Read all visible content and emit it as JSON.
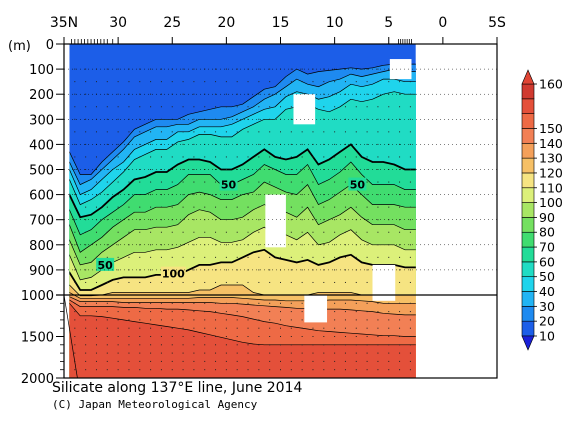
{
  "chart_data": {
    "type": "heatmap",
    "title": "Silicate along 137°E line, June 2014",
    "credit": "(C) Japan Meteorological Agency",
    "y_unit_label": "(m)",
    "x_ticks": [
      "35N",
      "30",
      "25",
      "20",
      "15",
      "10",
      "5",
      "0",
      "5S"
    ],
    "x_tick_values": [
      35,
      30,
      25,
      20,
      15,
      10,
      5,
      0,
      -5
    ],
    "xlim": [
      35,
      -5
    ],
    "y_ticks_upper": [
      0,
      100,
      200,
      300,
      400,
      500,
      600,
      700,
      800,
      900,
      1000
    ],
    "y_ticks_lower": [
      1000,
      1500,
      2000
    ],
    "ylim": [
      0,
      2000
    ],
    "y_break_depth": 1000,
    "data_lat_range": [
      34.5,
      2.5
    ],
    "colorbar": {
      "levels": [
        10,
        20,
        30,
        40,
        50,
        60,
        70,
        80,
        90,
        100,
        110,
        120,
        130,
        140,
        150,
        160
      ],
      "colors": [
        "#1c5ee8",
        "#1e8af0",
        "#22b4f4",
        "#1fd4ec",
        "#20dcc4",
        "#22dc98",
        "#40dc70",
        "#74e060",
        "#a8e664",
        "#dcf07a",
        "#f6e482",
        "#f6c066",
        "#f4a05a",
        "#f28055",
        "#ee6a45",
        "#e4503a",
        "#d03a30"
      ],
      "arrow_top_color": "#e04535",
      "arrow_bottom_color": "#1a20d8"
    },
    "contour_labels": [
      {
        "text": "50",
        "lat": 19.8,
        "depth": 560
      },
      {
        "text": "50",
        "lat": 7.9,
        "depth": 560
      },
      {
        "text": "50",
        "lat": 31.2,
        "depth": 880
      },
      {
        "text": "100",
        "lat": 24.9,
        "depth": 915
      }
    ],
    "missing_boxes": [
      {
        "lat": [
          4.9,
          2.9
        ],
        "depth": [
          60,
          140
        ]
      },
      {
        "lat": [
          13.8,
          11.8
        ],
        "depth": [
          200,
          320
        ]
      },
      {
        "lat": [
          16.4,
          14.5
        ],
        "depth": [
          600,
          810
        ]
      },
      {
        "lat": [
          12.8,
          10.7
        ],
        "depth": [
          1000,
          1330
        ]
      },
      {
        "lat": [
          6.5,
          4.4
        ],
        "depth": [
          880,
          1070
        ]
      }
    ],
    "level_profiles": [
      {
        "value": 10,
        "depth": [
          430,
          520,
          520,
          470,
          430,
          390,
          340,
          320,
          300,
          300,
          300,
          280,
          270,
          260,
          250,
          250,
          240,
          210,
          180,
          170,
          130,
          100,
          120,
          110,
          105,
          100,
          95,
          100,
          95,
          85,
          80,
          80,
          80
        ]
      },
      {
        "value": 20,
        "depth": [
          470,
          560,
          540,
          500,
          460,
          420,
          370,
          350,
          330,
          330,
          320,
          320,
          300,
          300,
          300,
          290,
          270,
          250,
          220,
          200,
          170,
          140,
          160,
          170,
          150,
          140,
          120,
          130,
          120,
          110,
          100,
          110,
          110
        ]
      },
      {
        "value": 30,
        "depth": [
          500,
          600,
          580,
          540,
          500,
          470,
          420,
          400,
          380,
          380,
          350,
          350,
          330,
          330,
          330,
          320,
          300,
          280,
          260,
          250,
          210,
          190,
          200,
          220,
          210,
          190,
          160,
          170,
          160,
          140,
          140,
          150,
          150
        ]
      },
      {
        "value": 40,
        "depth": [
          540,
          640,
          620,
          590,
          550,
          510,
          460,
          440,
          420,
          420,
          390,
          380,
          360,
          360,
          370,
          370,
          340,
          320,
          300,
          300,
          260,
          250,
          240,
          260,
          270,
          250,
          220,
          230,
          220,
          200,
          190,
          200,
          200
        ]
      },
      {
        "value": 50,
        "depth": [
          600,
          690,
          680,
          650,
          610,
          580,
          540,
          530,
          510,
          510,
          480,
          460,
          460,
          470,
          500,
          500,
          480,
          450,
          420,
          450,
          460,
          450,
          420,
          480,
          460,
          430,
          400,
          450,
          470,
          470,
          480,
          500,
          500
        ]
      },
      {
        "value": 60,
        "depth": [
          660,
          760,
          740,
          700,
          670,
          640,
          600,
          600,
          580,
          580,
          560,
          520,
          520,
          520,
          560,
          560,
          540,
          520,
          480,
          500,
          520,
          520,
          480,
          560,
          540,
          510,
          470,
          520,
          560,
          560,
          560,
          580,
          580
        ]
      },
      {
        "value": 70,
        "depth": [
          720,
          830,
          800,
          770,
          730,
          700,
          670,
          670,
          650,
          650,
          640,
          600,
          590,
          600,
          620,
          620,
          600,
          590,
          550,
          570,
          590,
          600,
          560,
          640,
          620,
          590,
          560,
          600,
          640,
          640,
          640,
          650,
          650
        ]
      },
      {
        "value": 80,
        "depth": [
          780,
          880,
          870,
          830,
          800,
          770,
          740,
          740,
          730,
          730,
          720,
          680,
          660,
          670,
          700,
          700,
          690,
          660,
          640,
          660,
          670,
          690,
          650,
          720,
          700,
          680,
          650,
          690,
          720,
          720,
          720,
          740,
          740
        ]
      },
      {
        "value": 90,
        "depth": [
          840,
          940,
          930,
          900,
          870,
          850,
          830,
          830,
          820,
          820,
          810,
          790,
          770,
          770,
          790,
          790,
          780,
          750,
          730,
          760,
          760,
          780,
          750,
          800,
          790,
          760,
          740,
          780,
          800,
          800,
          800,
          820,
          820
        ]
      },
      {
        "value": 100,
        "depth": [
          910,
          980,
          980,
          960,
          940,
          930,
          930,
          930,
          920,
          920,
          920,
          900,
          880,
          880,
          870,
          870,
          850,
          830,
          820,
          850,
          860,
          870,
          860,
          880,
          870,
          850,
          840,
          870,
          880,
          880,
          880,
          890,
          890
        ]
      },
      {
        "value": 110,
        "depth": [
          960,
          1010,
          1010,
          1000,
          990,
          990,
          990,
          990,
          990,
          990,
          990,
          990,
          980,
          980,
          960,
          960,
          960,
          990,
          1000,
          1000,
          1000,
          1000,
          1000,
          990,
          990,
          990,
          990,
          1000,
          1000,
          1000,
          1000,
          1000,
          1000
        ]
      },
      {
        "value": 120,
        "depth": [
          990,
          1040,
          1040,
          1040,
          1040,
          1040,
          1040,
          1040,
          1040,
          1040,
          1040,
          1040,
          1030,
          1030,
          1030,
          1030,
          1040,
          1050,
          1060,
          1060,
          1070,
          1070,
          1070,
          1070,
          1060,
          1060,
          1060,
          1070,
          1080,
          1100,
          1100,
          1100,
          1100
        ]
      },
      {
        "value": 130,
        "depth": [
          1020,
          1080,
          1080,
          1080,
          1080,
          1090,
          1090,
          1090,
          1090,
          1090,
          1090,
          1090,
          1090,
          1090,
          1100,
          1100,
          1110,
          1120,
          1130,
          1140,
          1150,
          1160,
          1160,
          1170,
          1170,
          1170,
          1180,
          1190,
          1200,
          1220,
          1230,
          1240,
          1240
        ]
      },
      {
        "value": 140,
        "depth": [
          1060,
          1140,
          1140,
          1140,
          1140,
          1150,
          1150,
          1160,
          1160,
          1170,
          1170,
          1180,
          1190,
          1200,
          1220,
          1240,
          1260,
          1290,
          1320,
          1340,
          1370,
          1390,
          1410,
          1430,
          1440,
          1450,
          1460,
          1470,
          1480,
          1490,
          1490,
          1500,
          1500
        ]
      },
      {
        "value": 150,
        "depth": [
          1100,
          1250,
          1250,
          1260,
          1280,
          1300,
          1320,
          1340,
          1360,
          1380,
          1400,
          1420,
          1450,
          1480,
          1510,
          1540,
          1570,
          1590,
          1600,
          1600,
          1600,
          1600,
          1600,
          1600,
          1600,
          1600,
          1600,
          1600,
          1600,
          1600,
          1600,
          1600,
          1600
        ]
      }
    ],
    "profile_lats": [
      34.5,
      33.5,
      32.5,
      31.5,
      30.5,
      29.5,
      28.5,
      27.5,
      26.5,
      25.5,
      24.5,
      23.5,
      22.5,
      21.5,
      20.5,
      19.5,
      18.5,
      17.5,
      16.5,
      15.5,
      14.5,
      13.5,
      12.5,
      11.5,
      10.5,
      9.5,
      8.5,
      7.5,
      6.5,
      5.5,
      4.5,
      3.5,
      2.5
    ],
    "bold_levels": [
      50,
      100
    ]
  }
}
